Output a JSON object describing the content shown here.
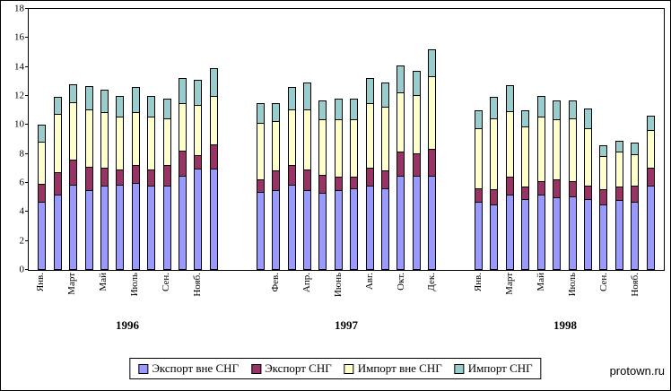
{
  "watermark": "protown.ru",
  "chart_data": {
    "type": "bar",
    "stacked": true,
    "title": "",
    "ylim": [
      0,
      18
    ],
    "yticks": [
      0,
      2,
      4,
      6,
      8,
      10,
      12,
      14,
      16,
      18
    ],
    "grid": false,
    "legend_position": "bottom",
    "series": [
      {
        "name": "Экспорт вне СНГ",
        "color": "#9999FF"
      },
      {
        "name": "Экспорт СНГ",
        "color": "#993366"
      },
      {
        "name": "Импорт вне СНГ",
        "color": "#FFFFCC"
      },
      {
        "name": "Импорт СНГ",
        "color": "#99CCCC"
      }
    ],
    "groups": [
      {
        "year": "1996",
        "month_labels": [
          "Янв.",
          "",
          "Март",
          "",
          "Май",
          "",
          "Июль",
          "",
          "Сен.",
          "",
          "Нояб.",
          ""
        ],
        "series_values": [
          [
            4.7,
            5.2,
            5.9,
            5.5,
            5.8,
            5.9,
            6.0,
            5.8,
            5.8,
            6.5,
            7.0,
            7.0
          ],
          [
            1.3,
            1.6,
            1.8,
            1.7,
            1.3,
            1.1,
            1.3,
            1.2,
            1.5,
            1.8,
            1.0,
            1.7
          ],
          [
            3.0,
            4.1,
            4.0,
            4.0,
            3.9,
            3.7,
            3.7,
            3.7,
            3.3,
            3.3,
            3.5,
            3.4
          ],
          [
            1.2,
            1.2,
            1.3,
            1.7,
            1.6,
            1.5,
            1.8,
            1.5,
            1.4,
            1.8,
            1.8,
            2.0
          ]
        ]
      },
      {
        "year": "1997",
        "month_labels": [
          "",
          "Фев.",
          "",
          "Апр.",
          "",
          "Июнь",
          "",
          "Авг.",
          "",
          "Окт.",
          "",
          "Дек."
        ],
        "series_values": [
          [
            5.4,
            5.5,
            5.9,
            5.5,
            5.3,
            5.5,
            5.6,
            5.8,
            5.6,
            6.5,
            6.5,
            6.5
          ],
          [
            0.9,
            1.4,
            1.4,
            1.5,
            1.3,
            1.0,
            0.9,
            1.3,
            1.3,
            1.7,
            1.6,
            1.9
          ],
          [
            4.0,
            3.5,
            3.9,
            4.2,
            3.9,
            4.0,
            4.0,
            4.5,
            4.5,
            4.2,
            4.1,
            5.1
          ],
          [
            1.4,
            1.3,
            1.6,
            1.9,
            1.4,
            1.5,
            1.5,
            1.8,
            1.7,
            1.9,
            1.7,
            1.9
          ]
        ]
      },
      {
        "year": "1998",
        "month_labels": [
          "Янв.",
          "",
          "Март",
          "",
          "Май",
          "",
          "Июль",
          "",
          "Сен.",
          "",
          "Нояб.",
          ""
        ],
        "series_values": [
          [
            4.7,
            4.5,
            5.2,
            4.9,
            5.2,
            5.0,
            5.1,
            4.9,
            4.5,
            4.8,
            4.7,
            5.8
          ],
          [
            1.0,
            1.1,
            1.3,
            0.9,
            1.0,
            1.3,
            1.1,
            1.0,
            1.1,
            1.0,
            1.2,
            1.3
          ],
          [
            4.2,
            5.0,
            4.6,
            4.2,
            4.5,
            4.2,
            4.4,
            4.0,
            2.4,
            2.5,
            2.2,
            2.7
          ],
          [
            1.3,
            1.5,
            1.8,
            1.2,
            1.5,
            1.4,
            1.3,
            1.4,
            0.8,
            0.8,
            0.9,
            1.0
          ]
        ]
      }
    ]
  }
}
